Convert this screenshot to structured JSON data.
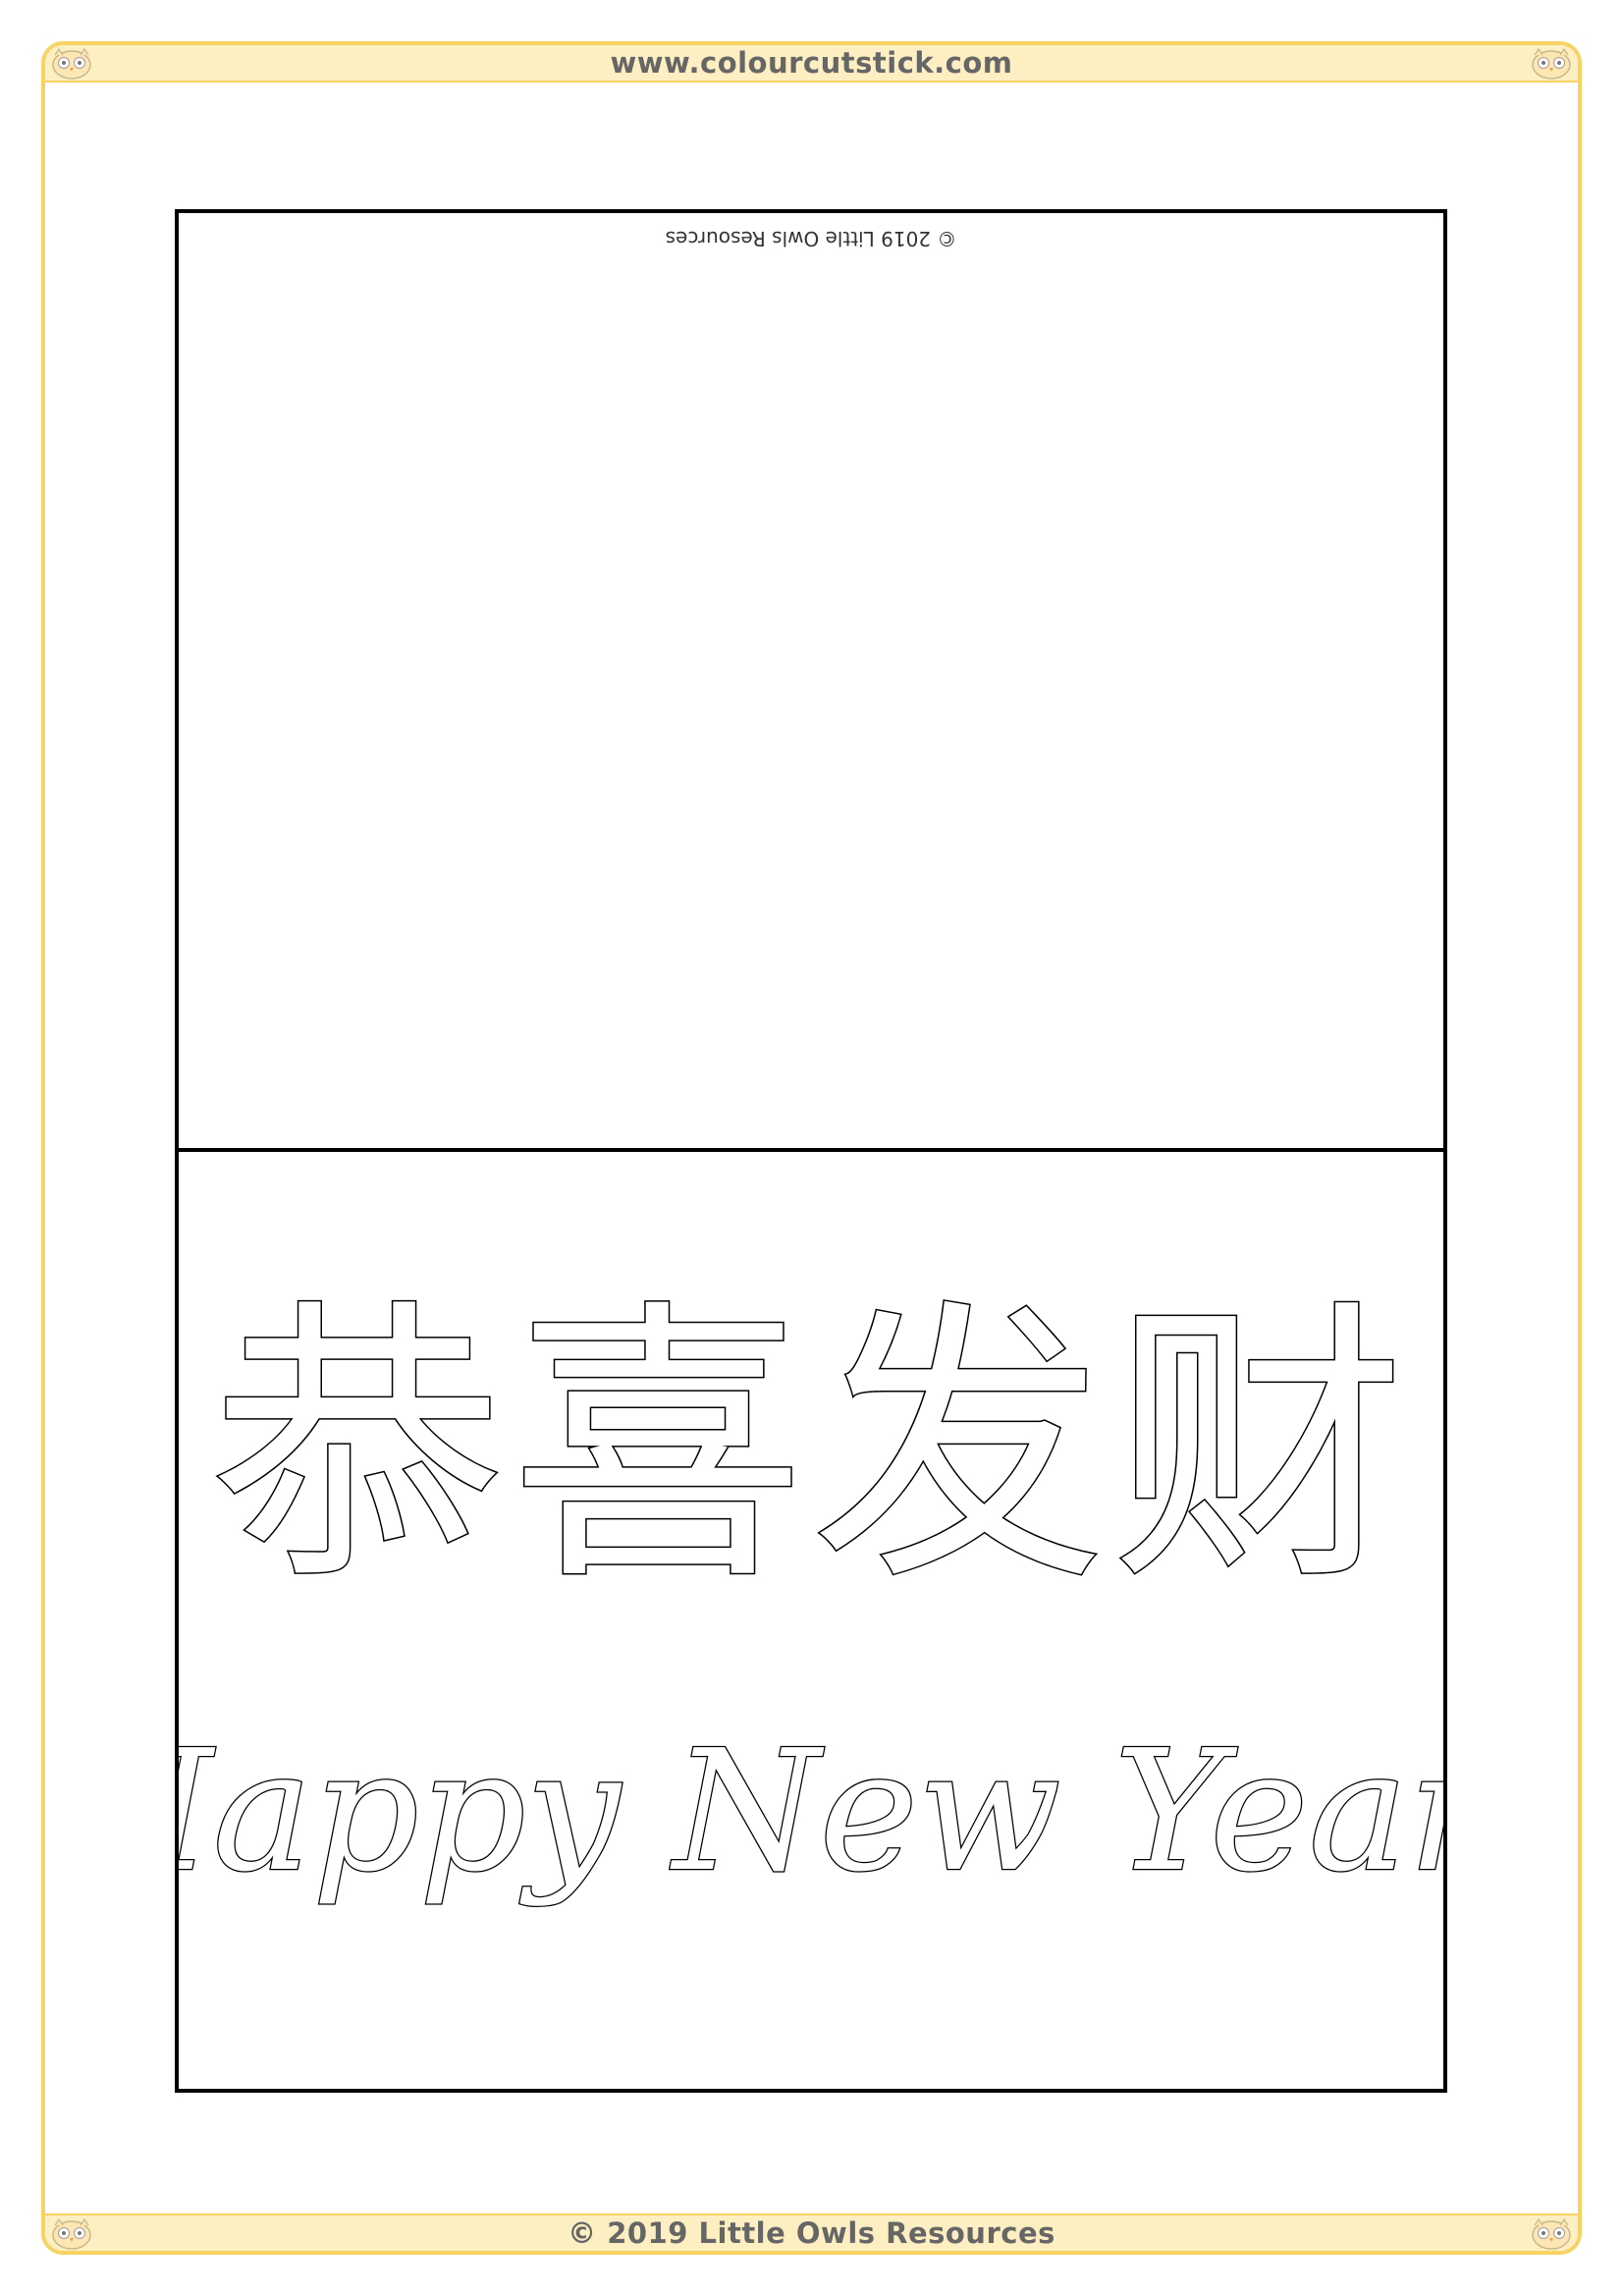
{
  "header": {
    "url": "www.colourcutstick.com"
  },
  "footer": {
    "copyright": "© 2019 Little Owls Resources"
  },
  "card": {
    "back_credit": "© 2019 Little Owls Resources",
    "chinese_greeting": "恭喜发财",
    "english_greeting": "Happy New Year!"
  },
  "colors": {
    "frame": "#f6d363",
    "bar_fill": "#fdefc1",
    "text_grey": "#666666",
    "outline": "#000000"
  },
  "icons": [
    "owl-icon"
  ]
}
